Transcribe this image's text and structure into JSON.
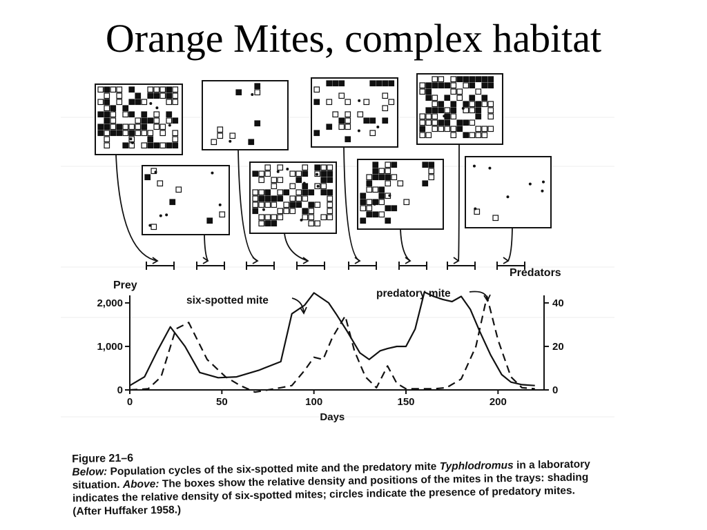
{
  "slide": {
    "title": "Orange Mites, complex habitat"
  },
  "chart_data": {
    "type": "line",
    "xlabel": "Days",
    "x_ticks": [
      0,
      50,
      100,
      150,
      200
    ],
    "xlim": [
      0,
      225
    ],
    "y_left": {
      "label": "Prey",
      "ticks": [
        "0",
        "1,000",
        "2,000"
      ],
      "tick_values": [
        0,
        1000,
        2000
      ],
      "lim": [
        0,
        2300
      ]
    },
    "y_right": {
      "label": "Predators",
      "ticks": [
        "0",
        "20",
        "40"
      ],
      "tick_values": [
        0,
        20,
        40
      ],
      "lim": [
        0,
        46
      ]
    },
    "series": [
      {
        "name": "six-spotted mite",
        "axis": "left",
        "style": "solid",
        "x": [
          0,
          8,
          15,
          22,
          30,
          38,
          48,
          58,
          70,
          82,
          88,
          95,
          100,
          108,
          112,
          118,
          125,
          130,
          136,
          140,
          145,
          150,
          155,
          160,
          165,
          170,
          175,
          180,
          185,
          190,
          196,
          202,
          207,
          213,
          220
        ],
        "y": [
          100,
          300,
          900,
          1450,
          1000,
          400,
          280,
          300,
          450,
          650,
          1750,
          1950,
          2230,
          2000,
          1750,
          1350,
          850,
          700,
          900,
          950,
          1000,
          1000,
          1400,
          2250,
          2150,
          2080,
          2030,
          2150,
          1850,
          1350,
          800,
          350,
          180,
          120,
          100
        ]
      },
      {
        "name": "predatory mite",
        "axis": "right",
        "style": "dashed",
        "x": [
          0,
          10,
          17,
          25,
          32,
          42,
          52,
          60,
          68,
          75,
          82,
          88,
          95,
          100,
          105,
          110,
          117,
          122,
          128,
          134,
          140,
          145,
          150,
          155,
          160,
          165,
          172,
          180,
          188,
          194,
          200,
          207,
          213,
          220
        ],
        "y": [
          0,
          0.5,
          6,
          28,
          31,
          14,
          6,
          2,
          -1,
          0,
          1,
          2,
          9,
          15,
          14,
          24,
          34,
          18,
          6,
          1,
          11,
          3,
          0.5,
          0.5,
          0.5,
          0.5,
          1,
          5,
          20,
          43,
          23,
          6,
          1,
          0.5
        ]
      }
    ],
    "annotations": [
      "six-spotted mite",
      "predatory mite"
    ],
    "trays": {
      "count": 8,
      "note": "boxes show relative density and positions of the mites; shading = density of six-spotted mites; circles = predatory mites"
    }
  },
  "caption": {
    "figure_number": "Figure 21–6",
    "below_label": "Below:",
    "below_text_1": " Population cycles of the six-spotted mite and the predatory mite ",
    "species": "Typhlodromus",
    "below_text_2": " in a laboratory situation. ",
    "above_label": "Above:",
    "above_text": " The boxes show the relative density and positions of the mites in the trays: shading indicates the relative density of six-spotted mites; circles indicate the presence of predatory mites. (After Huffaker 1958.)"
  }
}
